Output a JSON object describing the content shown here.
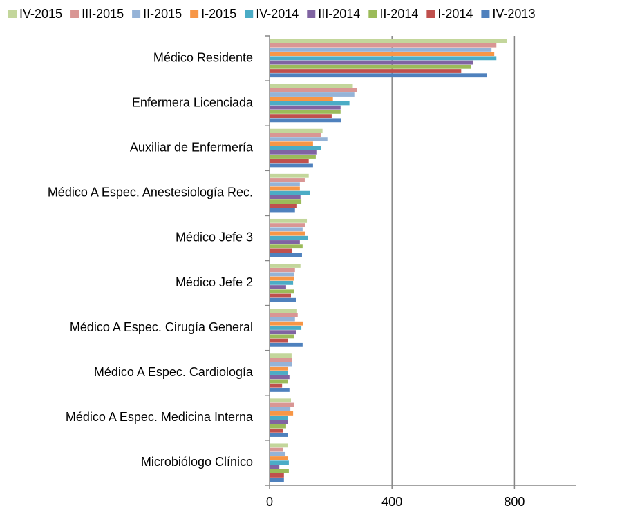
{
  "chart_data": {
    "type": "bar",
    "orientation": "horizontal",
    "categories": [
      "Médico Residente",
      "Enfermera Licenciada",
      "Auxiliar de Enfermería",
      "Médico A Espec.  Anestesiología Rec.",
      "Médico Jefe 3",
      "Médico Jefe 2",
      "Médico A Espec.  Cirugía General",
      "Médico A Espec.  Cardiología",
      "Médico A Espec.  Medicina Interna",
      "Microbiólogo Clínico"
    ],
    "series": [
      {
        "name": "IV-2015",
        "color": "#c3d69b",
        "values": [
          775,
          272,
          173,
          128,
          122,
          101,
          90,
          72,
          70,
          59
        ]
      },
      {
        "name": "III-2015",
        "color": "#d99694",
        "values": [
          741,
          286,
          167,
          115,
          117,
          83,
          92,
          74,
          79,
          45
        ]
      },
      {
        "name": "II-2015",
        "color": "#95b3d7",
        "values": [
          725,
          277,
          189,
          99,
          108,
          79,
          83,
          74,
          68,
          52
        ]
      },
      {
        "name": "I-2015",
        "color": "#f79646",
        "values": [
          734,
          207,
          142,
          99,
          117,
          81,
          110,
          61,
          77,
          61
        ]
      },
      {
        "name": "IV-2014",
        "color": "#4bacc6",
        "values": [
          741,
          261,
          169,
          133,
          126,
          77,
          104,
          61,
          59,
          63
        ]
      },
      {
        "name": "III-2014",
        "color": "#8064a2",
        "values": [
          664,
          232,
          153,
          101,
          99,
          54,
          86,
          65,
          59,
          32
        ]
      },
      {
        "name": "II-2014",
        "color": "#9bbb59",
        "values": [
          658,
          232,
          151,
          104,
          108,
          81,
          79,
          59,
          54,
          63
        ]
      },
      {
        "name": "I-2014",
        "color": "#c0504d",
        "values": [
          626,
          203,
          128,
          90,
          74,
          70,
          59,
          41,
          43,
          47
        ]
      },
      {
        "name": "IV-2013",
        "color": "#4f81bd",
        "values": [
          709,
          234,
          142,
          83,
          106,
          88,
          108,
          65,
          59,
          47
        ]
      }
    ],
    "xlim": [
      0,
      1000
    ],
    "xticks": [
      0,
      400,
      800
    ],
    "grid": true,
    "legend": "top"
  }
}
